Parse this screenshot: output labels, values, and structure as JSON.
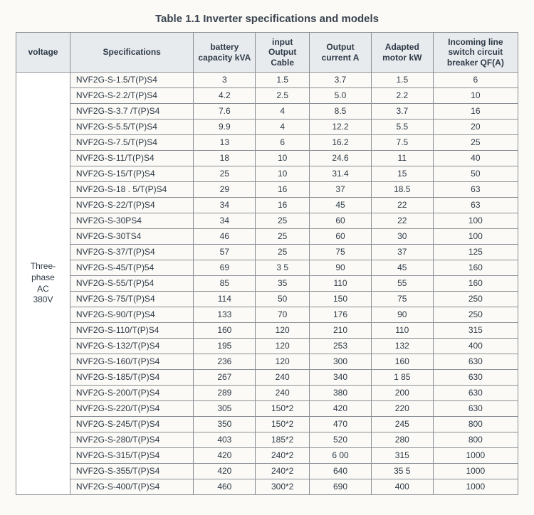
{
  "title": "Table 1.1 Inverter specifications and models",
  "columns": {
    "voltage": "voltage",
    "spec": "Specifications",
    "kva": "battery capacity kVA",
    "cable": "input Output Cable",
    "current": "Output current A",
    "motor": "Adapted motor kW",
    "qfa": "Incoming line switch circuit breaker QF(A)"
  },
  "voltage_label": "Three-phase AC 380V",
  "rows": [
    {
      "spec": "NVF2G-S-1.5/T(P)S4",
      "kva": "3",
      "cable": "1.5",
      "current": "3.7",
      "motor": "1.5",
      "qfa": "6"
    },
    {
      "spec": "NVF2G-S-2.2/T(P)S4",
      "kva": "4.2",
      "cable": "2.5",
      "current": "5.0",
      "motor": "2.2",
      "qfa": "10"
    },
    {
      "spec": "NVF2G-S-3.7 /T(P)S4",
      "kva": "7.6",
      "cable": "4",
      "current": "8.5",
      "motor": "3.7",
      "qfa": "16"
    },
    {
      "spec": "NVF2G-S-5.5/T(P)S4",
      "kva": "9.9",
      "cable": "4",
      "current": "12.2",
      "motor": "5.5",
      "qfa": "20"
    },
    {
      "spec": "NVF2G-S-7.5/T(P)S4",
      "kva": "13",
      "cable": "6",
      "current": "16.2",
      "motor": "7.5",
      "qfa": "25"
    },
    {
      "spec": "NVF2G-S-11/T(P)S4",
      "kva": "18",
      "cable": "10",
      "current": "24.6",
      "motor": "11",
      "qfa": "40"
    },
    {
      "spec": "NVF2G-S-15/T(P)S4",
      "kva": "25",
      "cable": "10",
      "current": "31.4",
      "motor": "15",
      "qfa": "50"
    },
    {
      "spec": "NVF2G-S-18 . 5/T(P)S4",
      "kva": "29",
      "cable": "16",
      "current": "37",
      "motor": "18.5",
      "qfa": "63"
    },
    {
      "spec": "NVF2G-S-22/T(P)S4",
      "kva": "34",
      "cable": "16",
      "current": "45",
      "motor": "22",
      "qfa": "63"
    },
    {
      "spec": "NVF2G-S-30PS4",
      "kva": "34",
      "cable": "25",
      "current": "60",
      "motor": "22",
      "qfa": "100"
    },
    {
      "spec": "NVF2G-S-30TS4",
      "kva": "46",
      "cable": "25",
      "current": "60",
      "motor": "30",
      "qfa": "100"
    },
    {
      "spec": "NVF2G-S-37/T(P)S4",
      "kva": "57",
      "cable": "25",
      "current": "75",
      "motor": "37",
      "qfa": "125"
    },
    {
      "spec": "NVF2G-S-45/T(P)54",
      "kva": "69",
      "cable": "3 5",
      "current": "90",
      "motor": "45",
      "qfa": "160"
    },
    {
      "spec": "NVF2G-S-55/T(P)54",
      "kva": "85",
      "cable": "35",
      "current": "110",
      "motor": "55",
      "qfa": "160"
    },
    {
      "spec": "NVF2G-S-75/T(P)S4",
      "kva": "114",
      "cable": "50",
      "current": "150",
      "motor": "75",
      "qfa": "250"
    },
    {
      "spec": "NVF2G-S-90/T(P)S4",
      "kva": "133",
      "cable": "70",
      "current": "176",
      "motor": "90",
      "qfa": "250"
    },
    {
      "spec": "NVF2G-S-110/T(P)S4",
      "kva": "160",
      "cable": "120",
      "current": "210",
      "motor": "110",
      "qfa": "315"
    },
    {
      "spec": "NVF2G-S-132/T(P)S4",
      "kva": "195",
      "cable": "120",
      "current": "253",
      "motor": "132",
      "qfa": "400"
    },
    {
      "spec": "NVF2G-S-160/T(P)S4",
      "kva": "236",
      "cable": "120",
      "current": "300",
      "motor": "160",
      "qfa": "630"
    },
    {
      "spec": "NVF2G-S-185/T(P)S4",
      "kva": "267",
      "cable": "240",
      "current": "340",
      "motor": "1 85",
      "qfa": "630"
    },
    {
      "spec": "NVF2G-S-200/T(P)S4",
      "kva": "289",
      "cable": "240",
      "current": "380",
      "motor": "200",
      "qfa": "630"
    },
    {
      "spec": "NVF2G-S-220/T(P)S4",
      "kva": "305",
      "cable": "150*2",
      "current": "420",
      "motor": "220",
      "qfa": "630"
    },
    {
      "spec": "NVF2G-S-245/T(P)S4",
      "kva": "350",
      "cable": "150*2",
      "current": "470",
      "motor": "245",
      "qfa": "800"
    },
    {
      "spec": "NVF2G-S-280/T(P)S4",
      "kva": "403",
      "cable": "185*2",
      "current": "520",
      "motor": "280",
      "qfa": "800"
    },
    {
      "spec": "NVF2G-S-315/T(P)S4",
      "kva": "420",
      "cable": "240*2",
      "current": "6 00",
      "motor": "315",
      "qfa": "1000"
    },
    {
      "spec": "NVF2G-S-355/T(P)S4",
      "kva": "420",
      "cable": "240*2",
      "current": "640",
      "motor": "35 5",
      "qfa": "1000"
    },
    {
      "spec": "NVF2G-S-400/T(P)S4",
      "kva": "460",
      "cable": "300*2",
      "current": "690",
      "motor": "400",
      "qfa": "1000"
    }
  ]
}
